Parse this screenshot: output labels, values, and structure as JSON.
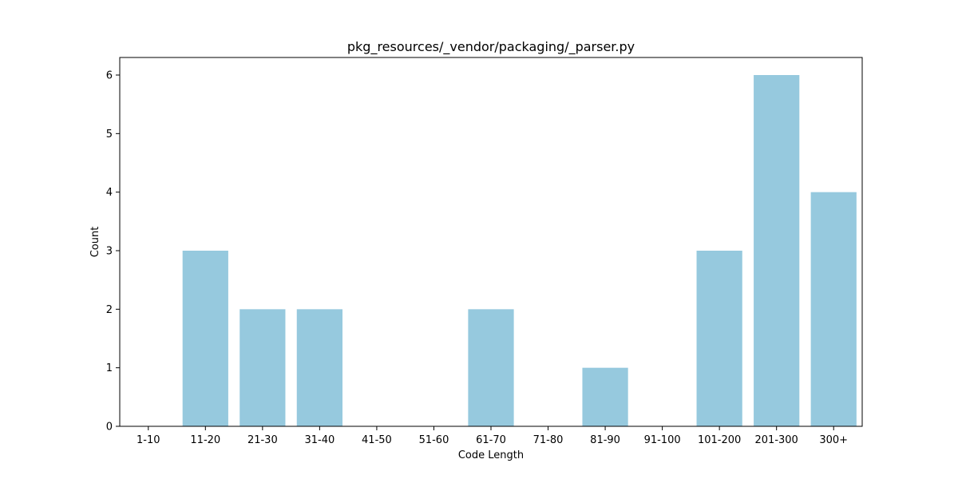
{
  "chart_data": {
    "type": "bar",
    "title": "pkg_resources/_vendor/packaging/_parser.py",
    "xlabel": "Code Length",
    "ylabel": "Count",
    "categories": [
      "1-10",
      "11-20",
      "21-30",
      "31-40",
      "41-50",
      "51-60",
      "61-70",
      "71-80",
      "81-90",
      "91-100",
      "101-200",
      "201-300",
      "300+"
    ],
    "values": [
      0,
      3,
      2,
      2,
      0,
      0,
      2,
      0,
      1,
      0,
      3,
      6,
      4
    ],
    "ylim": [
      0,
      6.3
    ],
    "yticks": [
      0,
      1,
      2,
      3,
      4,
      5,
      6
    ],
    "bar_color": "#96c9de",
    "grid": false,
    "legend": "none"
  }
}
